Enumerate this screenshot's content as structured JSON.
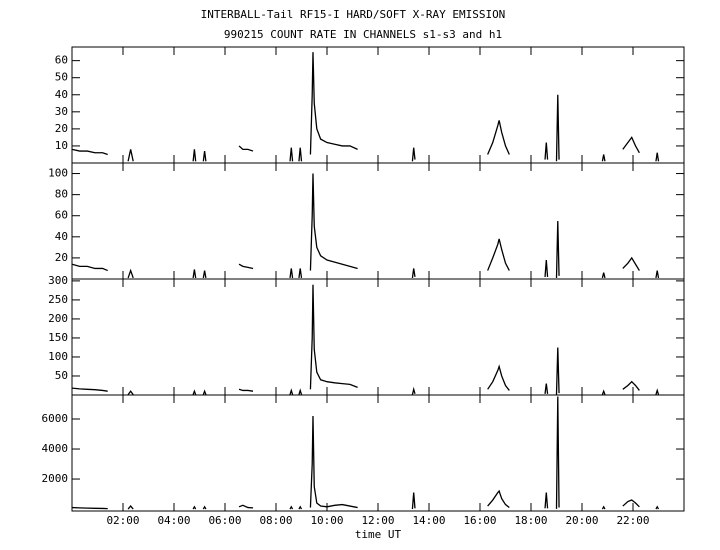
{
  "chart_data": [
    {
      "type": "line",
      "title": "INTERBALL-Tail RF15-I HARD/SOFT X-RAY EMISSION",
      "subtitle": "990215  COUNT RATE IN CHANNELS s1-s3 and h1",
      "color": "#000000",
      "xlim": [
        0,
        24
      ],
      "ylim": [
        0,
        68
      ],
      "yticks": [
        10,
        20,
        30,
        40,
        50,
        60
      ],
      "x": [
        0,
        0.3,
        0.6,
        0.9,
        1.2,
        1.4,
        1.8,
        2.2,
        2.3,
        2.4,
        3.5,
        4.75,
        4.8,
        4.85,
        5.0,
        5.15,
        5.2,
        5.25,
        6.0,
        6.55,
        6.7,
        6.9,
        7.1,
        7.8,
        8.55,
        8.6,
        8.65,
        8.75,
        8.9,
        8.95,
        9.0,
        9.2,
        9.35,
        9.42,
        9.45,
        9.5,
        9.6,
        9.75,
        10.0,
        10.3,
        10.6,
        10.9,
        11.2,
        12,
        13.35,
        13.4,
        13.45,
        15,
        16.3,
        16.5,
        16.7,
        16.75,
        16.85,
        17.0,
        17.15,
        18,
        18.55,
        18.6,
        18.65,
        18.8,
        19.0,
        19.05,
        19.1,
        20,
        20.8,
        20.85,
        20.9,
        21.3,
        21.6,
        21.8,
        21.95,
        22.1,
        22.25,
        22.6,
        22.9,
        22.95,
        23.0
      ],
      "values": [
        8,
        7,
        7,
        6,
        6,
        5,
        null,
        1,
        8,
        1,
        null,
        1,
        8,
        1,
        null,
        1,
        7,
        1,
        null,
        10,
        8,
        8,
        7,
        null,
        1,
        9,
        1,
        null,
        1,
        9,
        1,
        null,
        5,
        40,
        65,
        35,
        20,
        14,
        12,
        11,
        10,
        10,
        8,
        null,
        1,
        9,
        2,
        null,
        5,
        12,
        22,
        25,
        18,
        10,
        5,
        null,
        2,
        12,
        2,
        null,
        1,
        40,
        2,
        null,
        1,
        5,
        1,
        null,
        8,
        12,
        15,
        10,
        6,
        null,
        1,
        6,
        1
      ]
    },
    {
      "type": "line",
      "color": "#000000",
      "xlim": [
        0,
        24
      ],
      "ylim": [
        0,
        110
      ],
      "yticks": [
        20,
        40,
        60,
        80,
        100
      ],
      "x": [
        0,
        0.3,
        0.6,
        0.9,
        1.2,
        1.4,
        1.8,
        2.2,
        2.3,
        2.4,
        3.5,
        4.75,
        4.8,
        4.85,
        5.0,
        5.15,
        5.2,
        5.25,
        6.0,
        6.55,
        6.7,
        6.9,
        7.1,
        7.8,
        8.55,
        8.6,
        8.65,
        8.75,
        8.9,
        8.95,
        9.0,
        9.2,
        9.35,
        9.42,
        9.45,
        9.5,
        9.6,
        9.75,
        10.0,
        10.3,
        10.6,
        10.9,
        11.2,
        12,
        13.35,
        13.4,
        13.45,
        15,
        16.3,
        16.5,
        16.7,
        16.75,
        16.85,
        17.0,
        17.15,
        18,
        18.55,
        18.6,
        18.65,
        18.8,
        19.0,
        19.05,
        19.1,
        20,
        20.8,
        20.85,
        20.9,
        21.3,
        21.6,
        21.8,
        21.95,
        22.1,
        22.25,
        22.6,
        22.9,
        22.95,
        23.0
      ],
      "values": [
        14,
        12,
        12,
        10,
        10,
        8,
        null,
        1,
        8,
        1,
        null,
        1,
        9,
        1,
        null,
        1,
        8,
        1,
        null,
        14,
        12,
        11,
        10,
        null,
        1,
        10,
        1,
        null,
        1,
        10,
        1,
        null,
        8,
        60,
        100,
        50,
        30,
        22,
        18,
        16,
        14,
        12,
        10,
        null,
        1,
        10,
        2,
        null,
        8,
        20,
        33,
        38,
        28,
        15,
        8,
        null,
        2,
        18,
        2,
        null,
        1,
        55,
        3,
        null,
        1,
        6,
        1,
        null,
        10,
        15,
        20,
        14,
        8,
        null,
        1,
        8,
        1
      ]
    },
    {
      "type": "line",
      "color": "#000000",
      "xlim": [
        0,
        24
      ],
      "ylim": [
        0,
        305
      ],
      "yticks": [
        50,
        100,
        150,
        200,
        250,
        300
      ],
      "x": [
        0,
        0.3,
        0.6,
        0.9,
        1.2,
        1.4,
        1.8,
        2.2,
        2.3,
        2.4,
        3.5,
        4.75,
        4.8,
        4.85,
        5.0,
        5.15,
        5.2,
        5.25,
        6.0,
        6.55,
        6.7,
        6.9,
        7.1,
        7.8,
        8.55,
        8.6,
        8.65,
        8.75,
        8.9,
        8.95,
        9.0,
        9.2,
        9.35,
        9.42,
        9.45,
        9.5,
        9.6,
        9.75,
        10.0,
        10.3,
        10.6,
        10.9,
        11.2,
        12,
        13.35,
        13.4,
        13.45,
        15,
        16.3,
        16.5,
        16.7,
        16.75,
        16.85,
        17.0,
        17.15,
        18,
        18.55,
        18.6,
        18.65,
        18.8,
        19.0,
        19.05,
        19.1,
        20,
        20.8,
        20.85,
        20.9,
        21.3,
        21.6,
        21.8,
        21.95,
        22.1,
        22.25,
        22.6,
        22.9,
        22.95,
        23.0
      ],
      "values": [
        18,
        16,
        15,
        14,
        12,
        10,
        null,
        1,
        10,
        1,
        null,
        1,
        10,
        1,
        null,
        1,
        10,
        1,
        null,
        15,
        12,
        12,
        10,
        null,
        1,
        12,
        1,
        null,
        1,
        12,
        1,
        null,
        15,
        150,
        290,
        120,
        60,
        40,
        35,
        32,
        30,
        28,
        20,
        null,
        1,
        15,
        3,
        null,
        15,
        35,
        65,
        75,
        50,
        25,
        12,
        null,
        3,
        30,
        3,
        null,
        1,
        125,
        5,
        null,
        1,
        10,
        1,
        null,
        15,
        25,
        35,
        25,
        12,
        null,
        1,
        12,
        1
      ]
    },
    {
      "type": "line",
      "color": "#000000",
      "xlabel": "time UT",
      "xlim": [
        0,
        24
      ],
      "ylim": [
        -130,
        7600
      ],
      "yticks": [
        2000,
        4000,
        6000
      ],
      "xticks": [
        {
          "value": 2,
          "label": "02:00"
        },
        {
          "value": 4,
          "label": "04:00"
        },
        {
          "value": 6,
          "label": "06:00"
        },
        {
          "value": 8,
          "label": "08:00"
        },
        {
          "value": 10,
          "label": "10:00"
        },
        {
          "value": 12,
          "label": "12:00"
        },
        {
          "value": 14,
          "label": "14:00"
        },
        {
          "value": 16,
          "label": "16:00"
        },
        {
          "value": 18,
          "label": "18:00"
        },
        {
          "value": 20,
          "label": "20:00"
        },
        {
          "value": 22,
          "label": "22:00"
        }
      ],
      "x": [
        0,
        0.3,
        0.6,
        0.9,
        1.2,
        1.4,
        1.8,
        2.2,
        2.3,
        2.4,
        3.5,
        4.75,
        4.8,
        4.85,
        5.0,
        5.15,
        5.2,
        5.25,
        6.0,
        6.55,
        6.7,
        6.9,
        7.1,
        7.8,
        8.55,
        8.6,
        8.65,
        8.75,
        8.9,
        8.95,
        9.0,
        9.2,
        9.35,
        9.42,
        9.45,
        9.5,
        9.6,
        9.75,
        10.0,
        10.3,
        10.6,
        10.9,
        11.2,
        12,
        13.35,
        13.4,
        13.45,
        15,
        16.3,
        16.5,
        16.7,
        16.75,
        16.85,
        17.0,
        17.15,
        18,
        18.55,
        18.6,
        18.65,
        18.8,
        19.0,
        19.05,
        19.1,
        20,
        20.8,
        20.85,
        20.9,
        21.3,
        21.6,
        21.8,
        21.95,
        22.1,
        22.25,
        22.6,
        22.9,
        22.95,
        23.0
      ],
      "values": [
        100,
        80,
        60,
        50,
        40,
        30,
        null,
        1,
        200,
        1,
        null,
        1,
        150,
        1,
        null,
        1,
        150,
        1,
        null,
        150,
        250,
        100,
        80,
        null,
        1,
        150,
        1,
        null,
        1,
        150,
        1,
        null,
        100,
        3000,
        6200,
        1500,
        400,
        200,
        150,
        250,
        300,
        200,
        100,
        null,
        1,
        1100,
        50,
        null,
        200,
        600,
        1100,
        1200,
        700,
        300,
        100,
        null,
        50,
        1100,
        50,
        null,
        10,
        7500,
        100,
        null,
        1,
        150,
        1,
        null,
        200,
        500,
        600,
        400,
        150,
        null,
        1,
        150,
        1
      ]
    }
  ]
}
